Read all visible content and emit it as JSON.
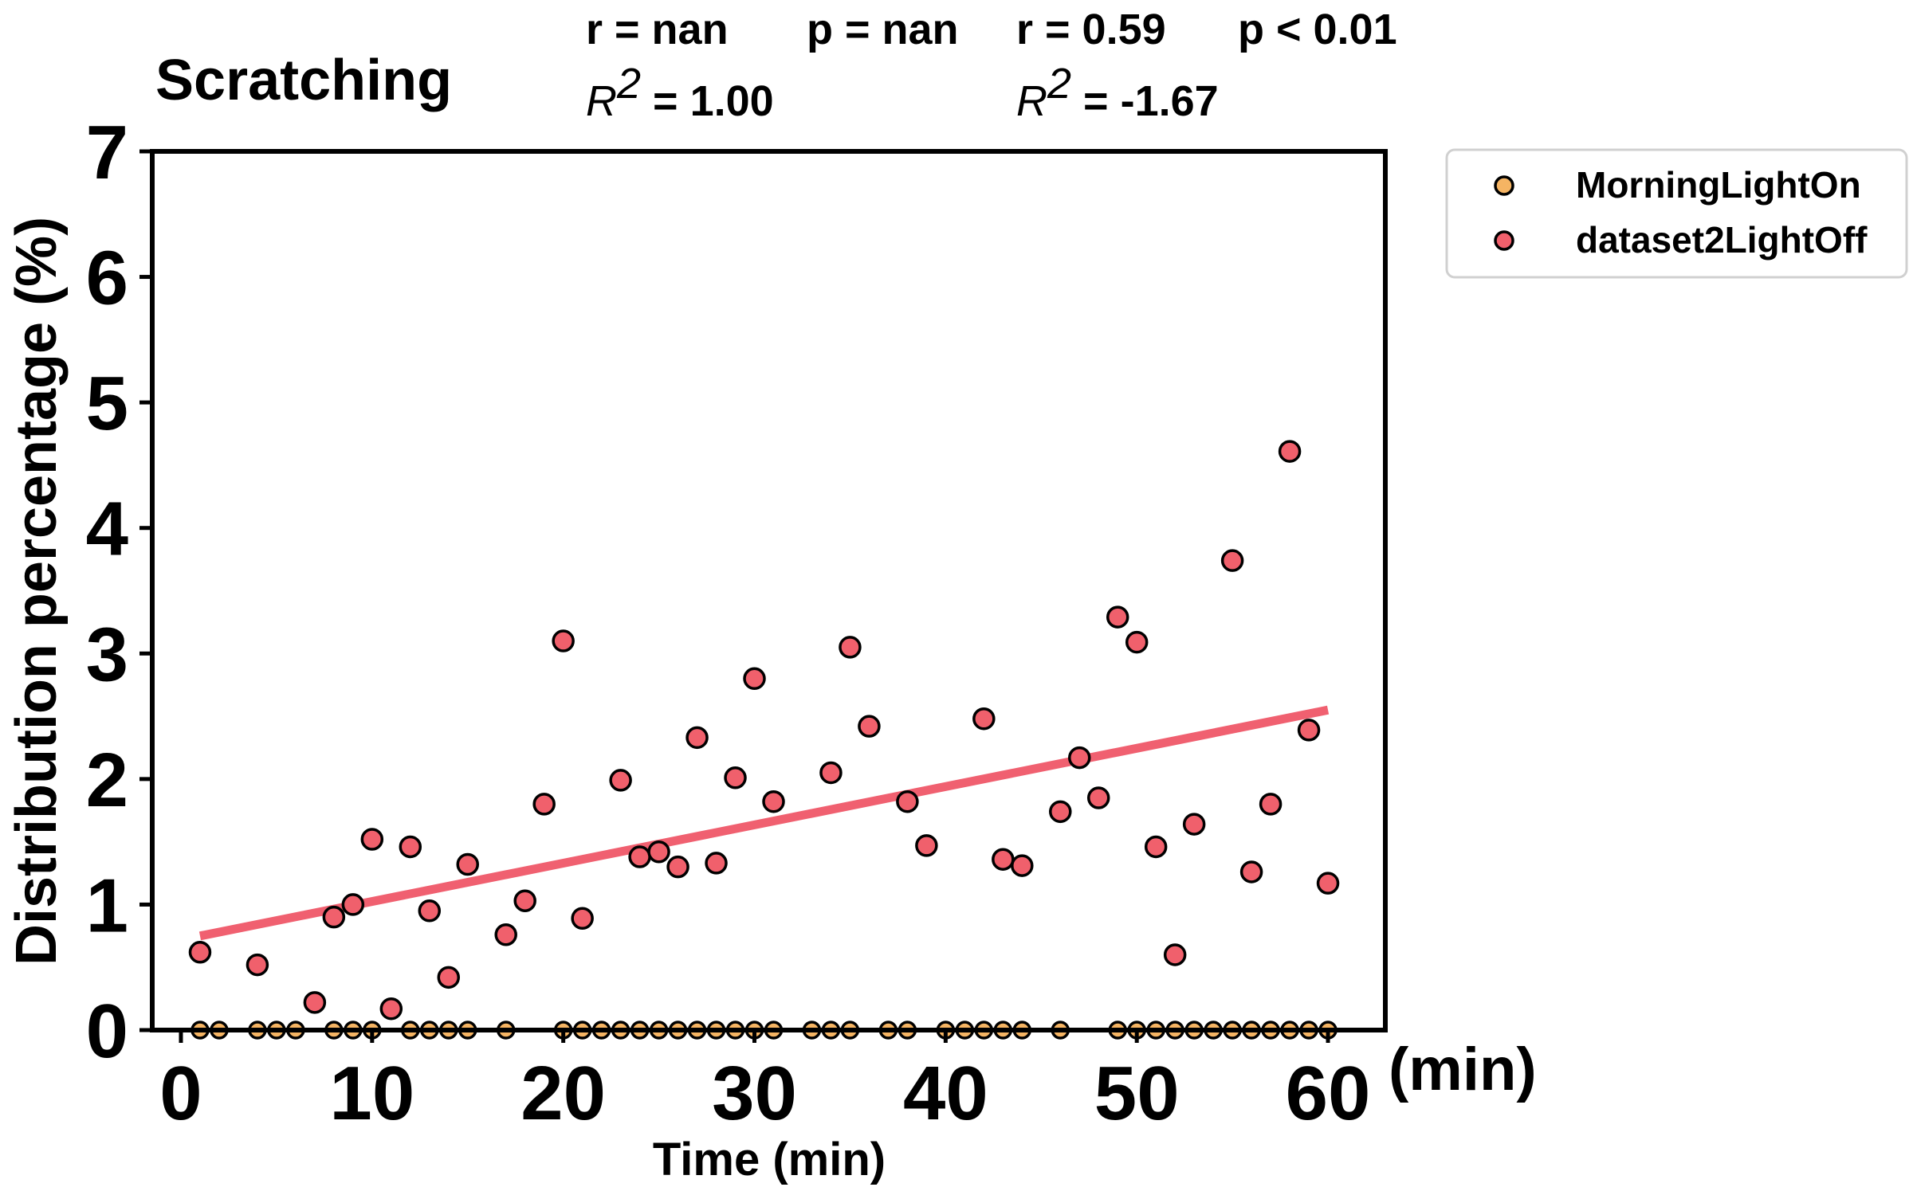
{
  "colors": {
    "series1": "#F5B463",
    "series2": "#F0606C",
    "fit2": "#F06070",
    "stat_r2": "#FF0000",
    "stat_p2": "#4B22A8"
  },
  "stats": {
    "series1": {
      "r": "r = nan",
      "p": "p = nan",
      "r2_prefix": "R",
      "r2_exp": "2",
      "r2_value": " = 1.00"
    },
    "series2": {
      "r": "r = 0.59",
      "p": "p < 0.01",
      "r2_prefix": "R",
      "r2_exp": "2",
      "r2_value": " = -1.67"
    }
  },
  "x_unit_label": "(min)",
  "chart_data": {
    "type": "scatter",
    "title": "Scratching",
    "xlabel": "Time (min)",
    "ylabel": "Distribution percentage (%)",
    "xlim": [
      -1.5,
      63
    ],
    "ylim": [
      0,
      7
    ],
    "xticks": [
      0,
      10,
      20,
      30,
      40,
      50,
      60
    ],
    "yticks": [
      0,
      1,
      2,
      3,
      4,
      5,
      6,
      7
    ],
    "legend_position": "outside-top-right",
    "grid": false,
    "series": [
      {
        "name": "MorningLightOn",
        "x": [
          1,
          2,
          4,
          5,
          6,
          8,
          9,
          10,
          12,
          13,
          14,
          15,
          17,
          20,
          21,
          22,
          23,
          24,
          25,
          26,
          27,
          28,
          29,
          30,
          31,
          33,
          34,
          35,
          37,
          38,
          40,
          41,
          42,
          43,
          44,
          46,
          49,
          50,
          51,
          52,
          53,
          54,
          55,
          56,
          57,
          58,
          59,
          60
        ],
        "y": [
          0,
          0,
          0,
          0,
          0,
          0,
          0,
          0,
          0,
          0,
          0,
          0,
          0,
          0,
          0,
          0,
          0,
          0,
          0,
          0,
          0,
          0,
          0,
          0,
          0,
          0,
          0,
          0,
          0,
          0,
          0,
          0,
          0,
          0,
          0,
          0,
          0,
          0,
          0,
          0,
          0,
          0,
          0,
          0,
          0,
          0,
          0,
          0
        ]
      },
      {
        "name": "dataset2LightOff",
        "x": [
          1,
          4,
          7,
          8,
          9,
          10,
          11,
          12,
          13,
          14,
          15,
          17,
          18,
          19,
          20,
          21,
          23,
          24,
          25,
          26,
          27,
          28,
          29,
          30,
          31,
          34,
          35,
          36,
          38,
          39,
          42,
          43,
          44,
          46,
          47,
          48,
          49,
          50,
          51,
          52,
          53,
          55,
          56,
          57,
          58,
          59,
          60
        ],
        "y": [
          0.62,
          0.52,
          0.22,
          0.9,
          1.0,
          1.52,
          0.17,
          1.46,
          0.95,
          0.42,
          1.32,
          0.76,
          1.03,
          1.8,
          3.1,
          0.89,
          1.99,
          1.38,
          1.42,
          1.3,
          2.33,
          1.33,
          2.01,
          2.8,
          1.82,
          2.05,
          3.05,
          2.42,
          1.82,
          1.47,
          2.48,
          1.36,
          1.31,
          1.74,
          2.17,
          1.85,
          3.29,
          3.09,
          1.46,
          0.6,
          1.64,
          3.74,
          1.26,
          1.8,
          4.61,
          2.39,
          1.17
        ],
        "fit": {
          "x": [
            1,
            60
          ],
          "y": [
            0.75,
            2.55
          ]
        }
      }
    ]
  }
}
